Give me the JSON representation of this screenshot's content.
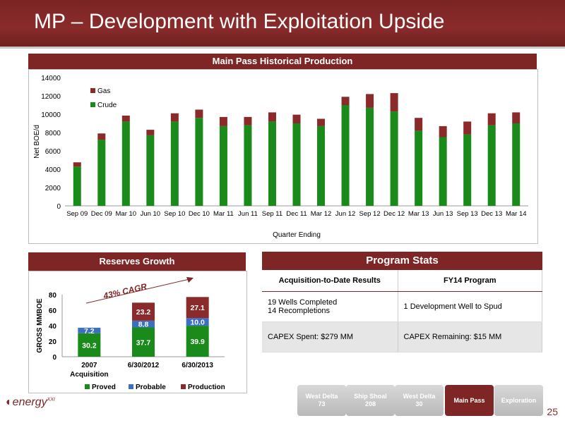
{
  "header": {
    "title": "MP – Development with Exploitation Upside"
  },
  "chart_data": [
    {
      "type": "bar",
      "stacked": true,
      "title": "Main Pass Historical Production",
      "xlabel": "Quarter Ending",
      "ylabel": "Net BOE/d",
      "ylim": [
        0,
        14000
      ],
      "yticks": [
        0,
        2000,
        4000,
        6000,
        8000,
        10000,
        12000,
        14000
      ],
      "categories": [
        "Sep 09",
        "Dec 09",
        "Mar 10",
        "Jun 10",
        "Sep 10",
        "Dec 10",
        "Mar 11",
        "Jun 11",
        "Sep 11",
        "Dec 11",
        "Mar 12",
        "Jun 12",
        "Sep 12",
        "Dec 12",
        "Mar 13",
        "Jun 13",
        "Sep 13",
        "Dec 13",
        "Mar 14"
      ],
      "series": [
        {
          "name": "Crude",
          "color": "#1a8a1a",
          "values": [
            4300,
            7200,
            9200,
            7700,
            9200,
            9600,
            8700,
            8800,
            9200,
            9000,
            8700,
            11000,
            10700,
            10300,
            8200,
            7500,
            7800,
            8800,
            9000
          ]
        },
        {
          "name": "Gas",
          "color": "#8b2a2a",
          "values": [
            450,
            700,
            650,
            600,
            900,
            900,
            1000,
            900,
            1000,
            950,
            800,
            900,
            1500,
            2000,
            1400,
            1200,
            1400,
            1300,
            1200
          ]
        }
      ],
      "legend": "top-left"
    },
    {
      "type": "bar",
      "stacked": true,
      "title": "Reserves Growth",
      "ylabel": "GROSS MMBOE",
      "ylim": [
        0,
        80
      ],
      "yticks": [
        0,
        20,
        40,
        60,
        80
      ],
      "categories": [
        "2007 Acquisition",
        "6/30/2012",
        "6/30/2013"
      ],
      "series": [
        {
          "name": "Proved",
          "color": "#1a8a1a",
          "values": [
            30.2,
            37.7,
            39.9
          ]
        },
        {
          "name": "Probable",
          "color": "#3a6fc4",
          "values": [
            7.2,
            8.8,
            10.0
          ]
        },
        {
          "name": "Production",
          "color": "#8b2a2a",
          "values": [
            null,
            23.2,
            27.1
          ]
        }
      ],
      "annotation": "43% CAGR",
      "legend": "bottom"
    }
  ],
  "stats": {
    "title": "Program Stats",
    "col1": "Acquisition-to-Date Results",
    "col2": "FY14 Program",
    "r1c1a": "19 Wells Completed",
    "r1c1b": "14 Recompletions",
    "r1c2": "1 Development Well to Spud",
    "r2c1": "CAPEX Spent: $279 MM",
    "r2c2": "CAPEX Remaining: $15 MM"
  },
  "nav": {
    "t1a": "West Delta",
    "t1b": "73",
    "t2a": "Ship Shoal",
    "t2b": "208",
    "t3a": "West Delta",
    "t3b": "30",
    "t4": "Main Pass",
    "t5": "Exploration"
  },
  "footer": {
    "page": "25",
    "logo": "energy",
    "logo_sup": "XXI"
  }
}
